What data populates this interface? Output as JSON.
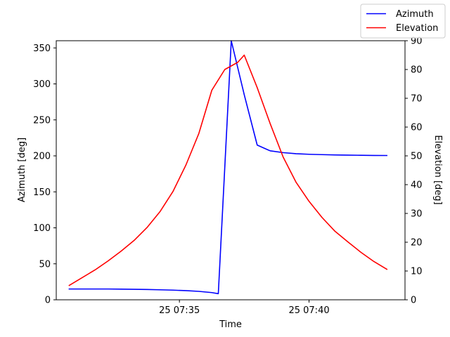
{
  "chart_data": {
    "type": "line",
    "xlabel": "Time",
    "x_tick_labels": [
      "25 07:35",
      "25 07:40"
    ],
    "x_ticks_minutes": [
      35,
      40
    ],
    "xlim_minutes": [
      30.25,
      43.7
    ],
    "y_left": {
      "label": "Azimuth [deg]",
      "lim": [
        0,
        360
      ],
      "ticks": [
        0,
        50,
        100,
        150,
        200,
        250,
        300,
        350
      ]
    },
    "y_right": {
      "label": "Elevation [deg]",
      "lim": [
        0,
        90
      ],
      "ticks": [
        0,
        10,
        20,
        30,
        40,
        50,
        60,
        70,
        80,
        90
      ]
    },
    "grid": false,
    "legend_position": "top-right",
    "x_minutes": [
      30.75,
      31.25,
      31.75,
      32.25,
      32.75,
      33.25,
      33.75,
      34.25,
      34.75,
      35.25,
      35.75,
      36.25,
      36.5,
      37.0,
      37.5,
      38.0,
      38.5,
      39.0,
      39.5,
      40.0,
      40.5,
      41.0,
      41.5,
      42.0,
      42.5,
      43.0
    ],
    "series": [
      {
        "name": "Azimuth",
        "axis": "left",
        "color": "#0000ff",
        "x_minutes": [
          30.75,
          31.25,
          31.75,
          32.25,
          32.75,
          33.25,
          33.75,
          34.25,
          34.75,
          35.25,
          35.75,
          36.25,
          36.5,
          37.0,
          37.5,
          38.0,
          38.5,
          39.0,
          39.5,
          40.0,
          40.5,
          41.0,
          41.5,
          42.0,
          42.5,
          43.0
        ],
        "values": [
          15,
          15,
          15,
          15,
          14.8,
          14.6,
          14.3,
          13.9,
          13.4,
          12.7,
          11.7,
          10,
          8.5,
          360,
          285,
          215,
          207,
          204.5,
          203,
          202.2,
          201.7,
          201.3,
          201,
          200.8,
          200.6,
          200.5
        ]
      },
      {
        "name": "Elevation",
        "axis": "right",
        "color": "#ff0000",
        "x_minutes": [
          30.75,
          31.25,
          31.75,
          32.25,
          32.75,
          33.25,
          33.75,
          34.25,
          34.75,
          35.25,
          35.75,
          36.25,
          36.75,
          37.25,
          37.5,
          38.0,
          38.5,
          39.0,
          39.5,
          40.0,
          40.5,
          41.0,
          41.5,
          42.0,
          42.5,
          43.0
        ],
        "values": [
          5,
          7.7,
          10.4,
          13.5,
          16.9,
          20.6,
          25.1,
          30.6,
          37.6,
          46.8,
          57.8,
          72.8,
          80,
          82.5,
          85,
          73.7,
          61.2,
          49.6,
          40.8,
          34.2,
          28.6,
          23.8,
          20.1,
          16.5,
          13.3,
          10.6
        ]
      }
    ]
  }
}
